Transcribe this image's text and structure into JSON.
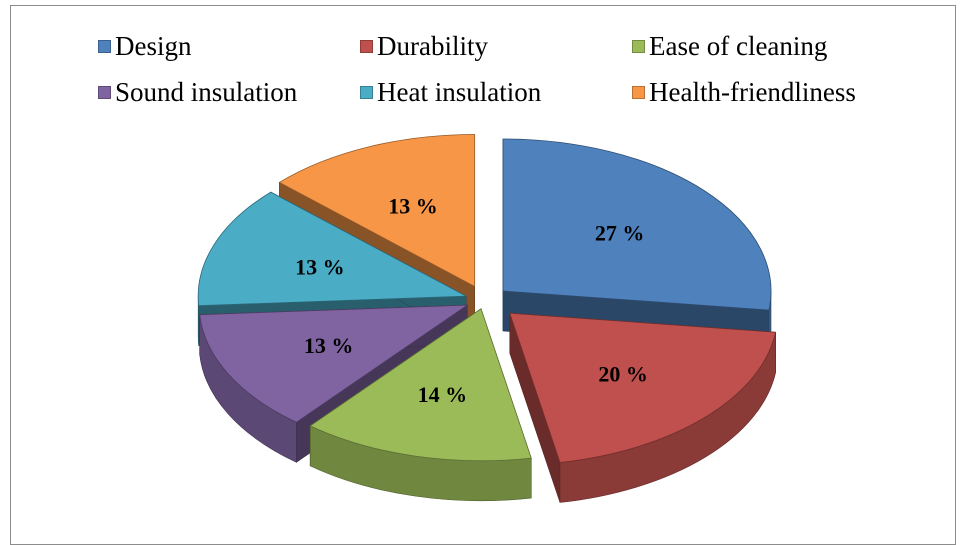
{
  "chart_data": {
    "type": "pie",
    "variant": "3d-exploded",
    "title": "",
    "legend_position": "top",
    "slices": [
      {
        "name": "Design",
        "value": 27,
        "label": "27 %",
        "color": "#4f81bd"
      },
      {
        "name": "Durability",
        "value": 20,
        "label": "20 %",
        "color": "#c0504d"
      },
      {
        "name": "Ease of cleaning",
        "value": 14,
        "label": "14 %",
        "color": "#9bbb59"
      },
      {
        "name": "Sound insulation",
        "value": 13,
        "label": "13 %",
        "color": "#8064a2"
      },
      {
        "name": "Heat insulation",
        "value": 13,
        "label": "13 %",
        "color": "#4bacc6"
      },
      {
        "name": "Health-friendliness",
        "value": 13,
        "label": "13 %",
        "color": "#f79646"
      }
    ]
  }
}
